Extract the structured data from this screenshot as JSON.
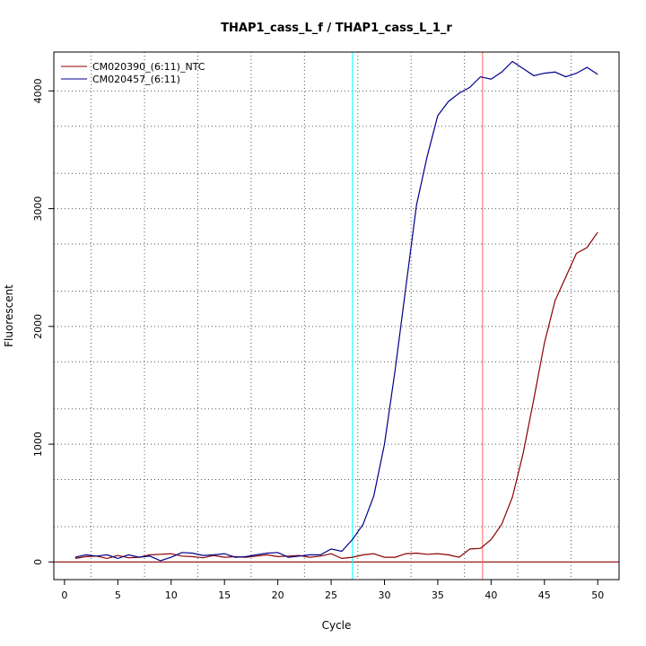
{
  "chart_data": {
    "type": "line",
    "title": "THAP1_cass_L_f / THAP1_cass_L_1_r",
    "xlabel": "Cycle",
    "ylabel": "Fluorescent",
    "xlim": [
      -1,
      52
    ],
    "ylim": [
      -150,
      4330
    ],
    "x_ticks": [
      0,
      5,
      10,
      15,
      20,
      25,
      30,
      35,
      40,
      45,
      50
    ],
    "y_ticks": [
      0,
      1000,
      2000,
      3000,
      4000
    ],
    "vertical_grid": [
      2.5,
      7.5,
      12.5,
      17.5,
      22.5,
      27.5,
      32.5,
      37.5,
      42.5,
      47.5
    ],
    "horizontal_grid": [
      300,
      700,
      1000,
      1300,
      1700,
      2000,
      2300,
      2700,
      3000,
      3300,
      3700,
      4000
    ],
    "grid": true,
    "legend_position": "top-left",
    "colors": {
      "ntc": "#8b0000",
      "sample": "#00008b",
      "baseline": "#8b0000",
      "threshold_cyan": "#00ffff",
      "threshold_red": "#ff6060"
    },
    "reference_lines": {
      "horizontal": [
        0
      ],
      "vertical": [
        {
          "x": 27,
          "color": "cyan"
        },
        {
          "x": 39.2,
          "color": "red"
        }
      ]
    },
    "x": [
      1,
      2,
      3,
      4,
      5,
      6,
      7,
      8,
      9,
      10,
      11,
      12,
      13,
      14,
      15,
      16,
      17,
      18,
      19,
      20,
      21,
      22,
      23,
      24,
      25,
      26,
      27,
      28,
      29,
      30,
      31,
      32,
      33,
      34,
      35,
      36,
      37,
      38,
      39,
      40,
      41,
      42,
      43,
      44,
      45,
      46,
      47,
      48,
      49,
      50
    ],
    "series": [
      {
        "name": "CM020390_(6:11)_NTC",
        "color": "#8b0000",
        "values": [
          30,
          45,
          50,
          30,
          55,
          35,
          40,
          60,
          65,
          70,
          50,
          45,
          35,
          55,
          40,
          45,
          40,
          50,
          60,
          45,
          50,
          55,
          40,
          50,
          70,
          30,
          40,
          60,
          70,
          40,
          40,
          70,
          75,
          65,
          70,
          60,
          40,
          110,
          115,
          190,
          320,
          550,
          920,
          1380,
          1860,
          2220,
          2420,
          2620,
          2670,
          2800
        ]
      },
      {
        "name": "CM020457_(6:11)",
        "color": "#00008b",
        "values": [
          40,
          60,
          50,
          60,
          30,
          60,
          40,
          50,
          10,
          40,
          80,
          75,
          55,
          60,
          70,
          40,
          45,
          60,
          75,
          80,
          40,
          50,
          60,
          60,
          110,
          90,
          190,
          320,
          560,
          1000,
          1630,
          2330,
          3030,
          3440,
          3790,
          3910,
          3980,
          4030,
          4120,
          4100,
          4160,
          4250,
          4190,
          4130,
          4150,
          4160,
          4120,
          4150,
          4200,
          4140
        ]
      }
    ]
  }
}
